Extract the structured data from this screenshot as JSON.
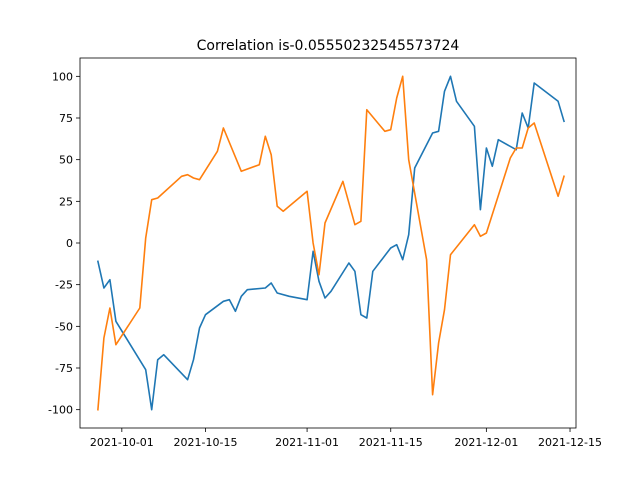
{
  "chart_data": {
    "type": "line",
    "title": "Correlation is-0.05550232545573724",
    "xlabel": "",
    "ylabel": "",
    "x_ticks": [
      "2021-10-01",
      "2021-10-15",
      "2021-11-01",
      "2021-11-15",
      "2021-12-01",
      "2021-12-15"
    ],
    "y_ticks": [
      -100,
      -75,
      -50,
      -25,
      0,
      25,
      50,
      75,
      100
    ],
    "xlim": [
      "2021-09-24",
      "2021-12-16"
    ],
    "ylim": [
      -111,
      111
    ],
    "grid": false,
    "legend": "none",
    "series": [
      {
        "color": "#1f77b4",
        "points": [
          [
            "2021-09-27",
            -11
          ],
          [
            "2021-09-28",
            -27
          ],
          [
            "2021-09-29",
            -22
          ],
          [
            "2021-09-30",
            -47
          ],
          [
            "2021-10-05",
            -76
          ],
          [
            "2021-10-06",
            -100
          ],
          [
            "2021-10-07",
            -70
          ],
          [
            "2021-10-08",
            -67
          ],
          [
            "2021-10-12",
            -82
          ],
          [
            "2021-10-13",
            -70
          ],
          [
            "2021-10-14",
            -51
          ],
          [
            "2021-10-15",
            -43
          ],
          [
            "2021-10-18",
            -35
          ],
          [
            "2021-10-19",
            -34
          ],
          [
            "2021-10-20",
            -41
          ],
          [
            "2021-10-21",
            -32
          ],
          [
            "2021-10-22",
            -28
          ],
          [
            "2021-10-25",
            -27
          ],
          [
            "2021-10-26",
            -24
          ],
          [
            "2021-10-27",
            -30
          ],
          [
            "2021-10-29",
            -32
          ],
          [
            "2021-11-01",
            -34
          ],
          [
            "2021-11-02",
            -5
          ],
          [
            "2021-11-03",
            -23
          ],
          [
            "2021-11-04",
            -33
          ],
          [
            "2021-11-05",
            -29
          ],
          [
            "2021-11-08",
            -12
          ],
          [
            "2021-11-09",
            -17
          ],
          [
            "2021-11-10",
            -43
          ],
          [
            "2021-11-11",
            -45
          ],
          [
            "2021-11-12",
            -17
          ],
          [
            "2021-11-15",
            -3
          ],
          [
            "2021-11-16",
            -1
          ],
          [
            "2021-11-17",
            -10
          ],
          [
            "2021-11-18",
            5
          ],
          [
            "2021-11-19",
            45
          ],
          [
            "2021-11-22",
            66
          ],
          [
            "2021-11-23",
            67
          ],
          [
            "2021-11-24",
            91
          ],
          [
            "2021-11-25",
            100
          ],
          [
            "2021-11-26",
            85
          ],
          [
            "2021-11-29",
            70
          ],
          [
            "2021-11-30",
            20
          ],
          [
            "2021-12-01",
            57
          ],
          [
            "2021-12-02",
            46
          ],
          [
            "2021-12-03",
            62
          ],
          [
            "2021-12-06",
            56
          ],
          [
            "2021-12-07",
            78
          ],
          [
            "2021-12-08",
            69
          ],
          [
            "2021-12-09",
            96
          ],
          [
            "2021-12-13",
            85
          ],
          [
            "2021-12-14",
            73
          ]
        ]
      },
      {
        "color": "#ff7f0e",
        "points": [
          [
            "2021-09-27",
            -100
          ],
          [
            "2021-09-28",
            -57
          ],
          [
            "2021-09-29",
            -39
          ],
          [
            "2021-09-30",
            -61
          ],
          [
            "2021-10-04",
            -39
          ],
          [
            "2021-10-05",
            3
          ],
          [
            "2021-10-06",
            26
          ],
          [
            "2021-10-07",
            27
          ],
          [
            "2021-10-11",
            40
          ],
          [
            "2021-10-12",
            41
          ],
          [
            "2021-10-13",
            39
          ],
          [
            "2021-10-14",
            38
          ],
          [
            "2021-10-17",
            55
          ],
          [
            "2021-10-18",
            69
          ],
          [
            "2021-10-21",
            43
          ],
          [
            "2021-10-24",
            47
          ],
          [
            "2021-10-25",
            64
          ],
          [
            "2021-10-26",
            53
          ],
          [
            "2021-10-27",
            22
          ],
          [
            "2021-10-28",
            19
          ],
          [
            "2021-11-01",
            31
          ],
          [
            "2021-11-02",
            0
          ],
          [
            "2021-11-03",
            -19
          ],
          [
            "2021-11-04",
            12
          ],
          [
            "2021-11-07",
            37
          ],
          [
            "2021-11-09",
            11
          ],
          [
            "2021-11-10",
            13
          ],
          [
            "2021-11-11",
            80
          ],
          [
            "2021-11-14",
            67
          ],
          [
            "2021-11-15",
            68
          ],
          [
            "2021-11-16",
            87
          ],
          [
            "2021-11-17",
            100
          ],
          [
            "2021-11-18",
            50
          ],
          [
            "2021-11-21",
            -10
          ],
          [
            "2021-11-22",
            -91
          ],
          [
            "2021-11-23",
            -60
          ],
          [
            "2021-11-24",
            -40
          ],
          [
            "2021-11-25",
            -7
          ],
          [
            "2021-11-29",
            11
          ],
          [
            "2021-11-30",
            4
          ],
          [
            "2021-12-01",
            6
          ],
          [
            "2021-12-05",
            51
          ],
          [
            "2021-12-06",
            57
          ],
          [
            "2021-12-07",
            57
          ],
          [
            "2021-12-08",
            69
          ],
          [
            "2021-12-09",
            72
          ],
          [
            "2021-12-13",
            28
          ],
          [
            "2021-12-14",
            40
          ]
        ]
      }
    ]
  }
}
